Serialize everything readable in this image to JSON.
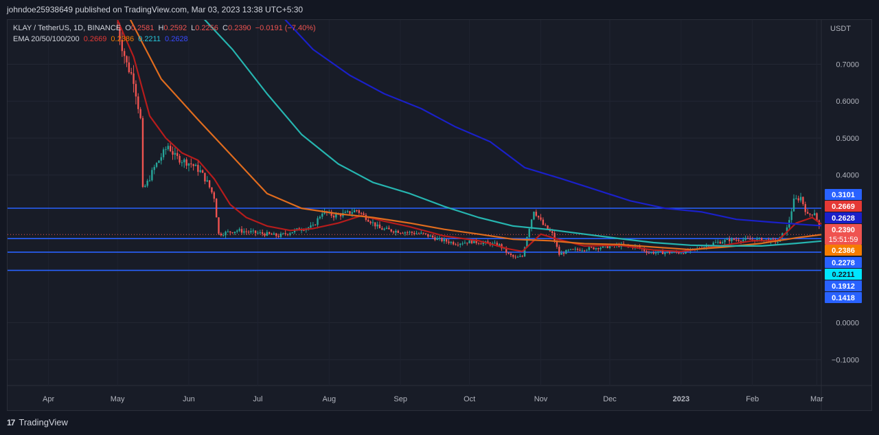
{
  "header": {
    "publish_line": "johndoe25938649 published on TradingView.com, Mar 03, 2023 13:38 UTC+5:30"
  },
  "legend": {
    "symbol": "KLAY / TetherUS, 1D, BINANCE",
    "o_label": "O",
    "o_value": "0.2581",
    "h_label": "H",
    "h_value": "0.2592",
    "l_label": "L",
    "l_value": "0.2256",
    "c_label": "C",
    "c_value": "0.2390",
    "change": "−0.0191 (−7.40%)",
    "ema_label": "EMA 20/50/100/200",
    "ema_values": [
      "0.2669",
      "0.2386",
      "0.2211",
      "0.2628"
    ]
  },
  "footer": {
    "brand": "TradingView",
    "logo_text": "17"
  },
  "colors": {
    "background": "#181c27",
    "up": "#26a69a",
    "down": "#ef5350",
    "ema20": "#b71c1c",
    "ema50": "#e06c1e",
    "ema100": "#26b5b0",
    "ema200": "#1a20c9",
    "hline": "#2962ff"
  },
  "chart_data": {
    "type": "line",
    "title": "KLAY / TetherUS, 1D, BINANCE",
    "currency_label": "USDT",
    "x_ticks": [
      "Apr",
      "May",
      "Jun",
      "Jul",
      "Aug",
      "Sep",
      "Oct",
      "Nov",
      "Dec",
      "2023",
      "Feb",
      "Mar"
    ],
    "y_ticks": [
      "0.7000",
      "0.6000",
      "0.5000",
      "0.4000",
      "0.0000",
      "−0.1000"
    ],
    "y_tick_values": [
      0.7,
      0.6,
      0.5,
      0.4,
      0.0,
      -0.1
    ],
    "ylim": [
      -0.17,
      0.82
    ],
    "horizontal_lines": [
      0.3101,
      0.2278,
      0.1912,
      0.1418
    ],
    "price_labels": [
      {
        "value": "0.3101",
        "color": "#2962ff"
      },
      {
        "value": "0.2669",
        "color": "#e53935"
      },
      {
        "value": "0.2628",
        "color": "#1a20c9"
      },
      {
        "value": "0.2390",
        "color": "#ef5350",
        "sub": "15:51:59"
      },
      {
        "value": "0.2386",
        "color": "#f57c00"
      },
      {
        "value": "0.2278",
        "color": "#2962ff"
      },
      {
        "value": "0.2211",
        "color": "#00e5ff"
      },
      {
        "value": "0.1912",
        "color": "#2962ff"
      },
      {
        "value": "0.1418",
        "color": "#2962ff"
      }
    ],
    "last_close": 0.239,
    "countdown": "15:51:59",
    "price_path": [
      [
        "2022-05-01",
        0.8
      ],
      [
        "2022-05-05",
        0.7
      ],
      [
        "2022-05-08",
        0.66
      ],
      [
        "2022-05-11",
        0.55
      ],
      [
        "2022-05-12",
        0.36
      ],
      [
        "2022-05-14",
        0.38
      ],
      [
        "2022-05-17",
        0.42
      ],
      [
        "2022-05-20",
        0.45
      ],
      [
        "2022-05-23",
        0.48
      ],
      [
        "2022-05-26",
        0.45
      ],
      [
        "2022-05-29",
        0.44
      ],
      [
        "2022-06-02",
        0.43
      ],
      [
        "2022-06-06",
        0.41
      ],
      [
        "2022-06-09",
        0.38
      ],
      [
        "2022-06-12",
        0.34
      ],
      [
        "2022-06-14",
        0.24
      ],
      [
        "2022-06-18",
        0.245
      ],
      [
        "2022-06-22",
        0.25
      ],
      [
        "2022-06-28",
        0.245
      ],
      [
        "2022-07-05",
        0.24
      ],
      [
        "2022-07-10",
        0.235
      ],
      [
        "2022-07-15",
        0.245
      ],
      [
        "2022-07-20",
        0.255
      ],
      [
        "2022-07-25",
        0.26
      ],
      [
        "2022-07-29",
        0.3
      ],
      [
        "2022-08-03",
        0.29
      ],
      [
        "2022-08-08",
        0.295
      ],
      [
        "2022-08-13",
        0.305
      ],
      [
        "2022-08-18",
        0.28
      ],
      [
        "2022-08-23",
        0.255
      ],
      [
        "2022-08-28",
        0.25
      ],
      [
        "2022-09-04",
        0.245
      ],
      [
        "2022-09-11",
        0.24
      ],
      [
        "2022-09-18",
        0.225
      ],
      [
        "2022-09-25",
        0.215
      ],
      [
        "2022-10-02",
        0.22
      ],
      [
        "2022-10-09",
        0.215
      ],
      [
        "2022-10-14",
        0.21
      ],
      [
        "2022-10-18",
        0.185
      ],
      [
        "2022-10-21",
        0.175
      ],
      [
        "2022-10-24",
        0.18
      ],
      [
        "2022-10-26",
        0.235
      ],
      [
        "2022-10-29",
        0.305
      ],
      [
        "2022-11-02",
        0.265
      ],
      [
        "2022-11-06",
        0.24
      ],
      [
        "2022-11-09",
        0.185
      ],
      [
        "2022-11-13",
        0.195
      ],
      [
        "2022-11-20",
        0.2
      ],
      [
        "2022-11-28",
        0.205
      ],
      [
        "2022-12-06",
        0.21
      ],
      [
        "2022-12-13",
        0.205
      ],
      [
        "2022-12-18",
        0.19
      ],
      [
        "2022-12-25",
        0.19
      ],
      [
        "2023-01-01",
        0.19
      ],
      [
        "2023-01-08",
        0.2
      ],
      [
        "2023-01-15",
        0.215
      ],
      [
        "2023-01-22",
        0.225
      ],
      [
        "2023-01-29",
        0.225
      ],
      [
        "2023-02-05",
        0.225
      ],
      [
        "2023-02-12",
        0.22
      ],
      [
        "2023-02-16",
        0.255
      ],
      [
        "2023-02-19",
        0.33
      ],
      [
        "2023-02-22",
        0.34
      ],
      [
        "2023-02-25",
        0.29
      ],
      [
        "2023-02-28",
        0.3
      ],
      [
        "2023-03-03",
        0.239
      ]
    ],
    "series": [
      {
        "name": "EMA 20",
        "color": "#b71c1c",
        "values": [
          [
            "2022-05-01",
            0.82
          ],
          [
            "2022-05-08",
            0.72
          ],
          [
            "2022-05-15",
            0.56
          ],
          [
            "2022-05-22",
            0.5
          ],
          [
            "2022-05-29",
            0.46
          ],
          [
            "2022-06-05",
            0.44
          ],
          [
            "2022-06-12",
            0.39
          ],
          [
            "2022-06-19",
            0.32
          ],
          [
            "2022-06-26",
            0.285
          ],
          [
            "2022-07-05",
            0.262
          ],
          [
            "2022-07-15",
            0.25
          ],
          [
            "2022-07-25",
            0.255
          ],
          [
            "2022-08-05",
            0.27
          ],
          [
            "2022-08-15",
            0.29
          ],
          [
            "2022-08-25",
            0.275
          ],
          [
            "2022-09-05",
            0.26
          ],
          [
            "2022-09-20",
            0.235
          ],
          [
            "2022-10-05",
            0.222
          ],
          [
            "2022-10-18",
            0.2
          ],
          [
            "2022-10-24",
            0.193
          ],
          [
            "2022-11-01",
            0.24
          ],
          [
            "2022-11-09",
            0.225
          ],
          [
            "2022-11-20",
            0.208
          ],
          [
            "2022-12-05",
            0.21
          ],
          [
            "2022-12-20",
            0.197
          ],
          [
            "2023-01-01",
            0.193
          ],
          [
            "2023-01-15",
            0.205
          ],
          [
            "2023-02-01",
            0.222
          ],
          [
            "2023-02-12",
            0.222
          ],
          [
            "2023-02-20",
            0.27
          ],
          [
            "2023-02-27",
            0.285
          ],
          [
            "2023-03-03",
            0.2669
          ]
        ]
      },
      {
        "name": "EMA 50",
        "color": "#e06c1e",
        "values": [
          [
            "2022-05-05",
            0.84
          ],
          [
            "2022-05-20",
            0.66
          ],
          [
            "2022-06-05",
            0.55
          ],
          [
            "2022-06-20",
            0.45
          ],
          [
            "2022-07-05",
            0.35
          ],
          [
            "2022-07-20",
            0.31
          ],
          [
            "2022-08-05",
            0.295
          ],
          [
            "2022-08-20",
            0.285
          ],
          [
            "2022-09-05",
            0.27
          ],
          [
            "2022-09-20",
            0.253
          ],
          [
            "2022-10-05",
            0.24
          ],
          [
            "2022-10-20",
            0.226
          ],
          [
            "2022-11-05",
            0.222
          ],
          [
            "2022-11-20",
            0.214
          ],
          [
            "2022-12-05",
            0.212
          ],
          [
            "2022-12-20",
            0.205
          ],
          [
            "2023-01-05",
            0.198
          ],
          [
            "2023-01-20",
            0.205
          ],
          [
            "2023-02-05",
            0.215
          ],
          [
            "2023-02-20",
            0.23
          ],
          [
            "2023-03-03",
            0.2386
          ]
        ]
      },
      {
        "name": "EMA 100",
        "color": "#26b5b0",
        "values": [
          [
            "2022-06-05",
            0.84
          ],
          [
            "2022-06-20",
            0.74
          ],
          [
            "2022-07-05",
            0.62
          ],
          [
            "2022-07-20",
            0.51
          ],
          [
            "2022-08-05",
            0.43
          ],
          [
            "2022-08-20",
            0.38
          ],
          [
            "2022-09-05",
            0.35
          ],
          [
            "2022-09-20",
            0.315
          ],
          [
            "2022-10-05",
            0.285
          ],
          [
            "2022-10-20",
            0.262
          ],
          [
            "2022-11-05",
            0.252
          ],
          [
            "2022-11-20",
            0.24
          ],
          [
            "2022-12-05",
            0.228
          ],
          [
            "2022-12-20",
            0.217
          ],
          [
            "2023-01-05",
            0.21
          ],
          [
            "2023-01-20",
            0.208
          ],
          [
            "2023-02-05",
            0.208
          ],
          [
            "2023-02-20",
            0.215
          ],
          [
            "2023-03-03",
            0.2211
          ]
        ]
      },
      {
        "name": "EMA 200",
        "color": "#1a20c9",
        "values": [
          [
            "2022-07-10",
            0.84
          ],
          [
            "2022-07-25",
            0.74
          ],
          [
            "2022-08-10",
            0.67
          ],
          [
            "2022-08-25",
            0.62
          ],
          [
            "2022-09-10",
            0.58
          ],
          [
            "2022-09-25",
            0.53
          ],
          [
            "2022-10-10",
            0.49
          ],
          [
            "2022-10-25",
            0.42
          ],
          [
            "2022-11-10",
            0.39
          ],
          [
            "2022-11-25",
            0.36
          ],
          [
            "2022-12-10",
            0.33
          ],
          [
            "2022-12-25",
            0.31
          ],
          [
            "2023-01-10",
            0.3
          ],
          [
            "2023-01-25",
            0.28
          ],
          [
            "2023-02-10",
            0.272
          ],
          [
            "2023-02-25",
            0.265
          ],
          [
            "2023-03-03",
            0.2628
          ]
        ]
      }
    ]
  }
}
